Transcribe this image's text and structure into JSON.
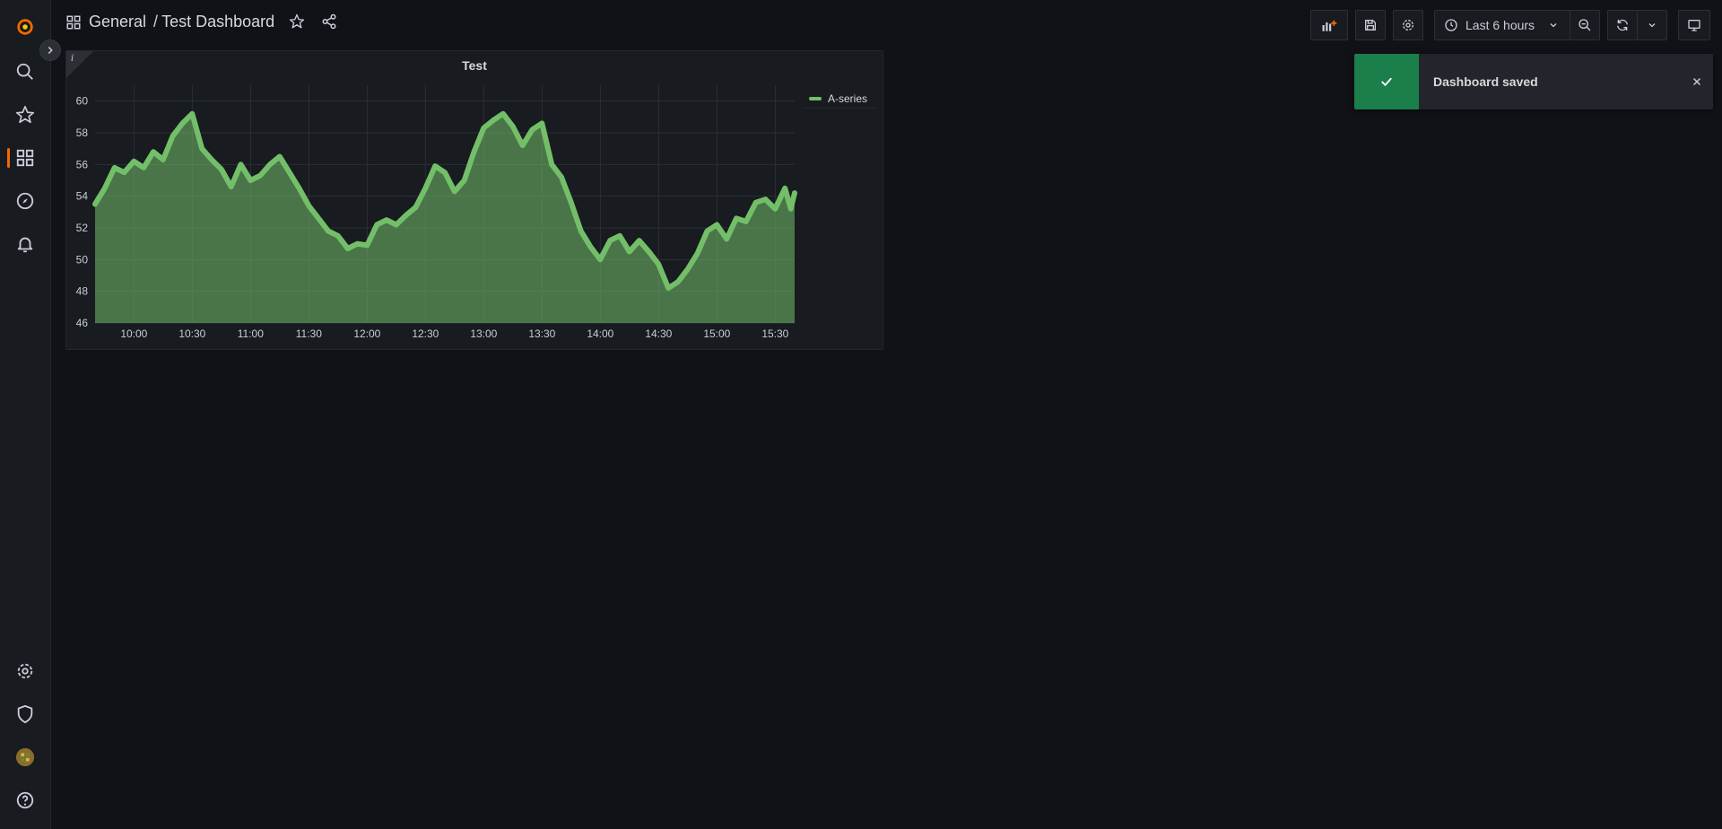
{
  "breadcrumb": {
    "folder": "General",
    "separator": "/",
    "dashboard": "Test Dashboard"
  },
  "toolbar": {
    "time_range": "Last 6 hours"
  },
  "panel": {
    "title": "Test",
    "info_marker": "i"
  },
  "toast": {
    "message": "Dashboard saved"
  },
  "icons": {
    "sidebar": [
      "grafana-logo-icon",
      "search-icon",
      "star-icon",
      "dashboards-icon",
      "explore-icon",
      "alerting-icon",
      "gear-icon",
      "shield-icon",
      "avatar",
      "help-icon"
    ],
    "toolbar": [
      "add-panel-icon",
      "save-icon",
      "gear-icon",
      "clock-icon",
      "chevron-down-icon",
      "zoom-out-icon",
      "refresh-icon",
      "chevron-down-icon",
      "tv-icon"
    ]
  },
  "colors": {
    "accent": "#f46800",
    "series": "#73bf69",
    "success": "#1a7f4b"
  },
  "chart_data": {
    "type": "area",
    "title": "Test",
    "series": [
      {
        "name": "A-series",
        "color": "#73bf69",
        "points": [
          [
            "09:40",
            53.5
          ],
          [
            "09:45",
            54.5
          ],
          [
            "09:50",
            55.8
          ],
          [
            "09:55",
            55.5
          ],
          [
            "10:00",
            56.2
          ],
          [
            "10:05",
            55.8
          ],
          [
            "10:10",
            56.8
          ],
          [
            "10:15",
            56.3
          ],
          [
            "10:20",
            57.8
          ],
          [
            "10:25",
            58.6
          ],
          [
            "10:30",
            59.2
          ],
          [
            "10:35",
            57.0
          ],
          [
            "10:40",
            56.3
          ],
          [
            "10:45",
            55.7
          ],
          [
            "10:50",
            54.6
          ],
          [
            "10:55",
            56.0
          ],
          [
            "11:00",
            55.0
          ],
          [
            "11:05",
            55.3
          ],
          [
            "11:10",
            56.0
          ],
          [
            "11:15",
            56.5
          ],
          [
            "11:20",
            55.5
          ],
          [
            "11:25",
            54.5
          ],
          [
            "11:30",
            53.4
          ],
          [
            "11:35",
            52.6
          ],
          [
            "11:40",
            51.8
          ],
          [
            "11:45",
            51.5
          ],
          [
            "11:50",
            50.7
          ],
          [
            "11:55",
            51.0
          ],
          [
            "12:00",
            50.9
          ],
          [
            "12:05",
            52.2
          ],
          [
            "12:10",
            52.5
          ],
          [
            "12:15",
            52.2
          ],
          [
            "12:20",
            52.8
          ],
          [
            "12:25",
            53.3
          ],
          [
            "12:30",
            54.5
          ],
          [
            "12:35",
            55.9
          ],
          [
            "12:40",
            55.5
          ],
          [
            "12:45",
            54.3
          ],
          [
            "12:50",
            55.0
          ],
          [
            "12:55",
            56.8
          ],
          [
            "13:00",
            58.3
          ],
          [
            "13:05",
            58.8
          ],
          [
            "13:10",
            59.2
          ],
          [
            "13:15",
            58.4
          ],
          [
            "13:20",
            57.2
          ],
          [
            "13:25",
            58.2
          ],
          [
            "13:30",
            58.6
          ],
          [
            "13:35",
            56.0
          ],
          [
            "13:40",
            55.2
          ],
          [
            "13:45",
            53.6
          ],
          [
            "13:50",
            51.8
          ],
          [
            "13:55",
            50.8
          ],
          [
            "14:00",
            50.0
          ],
          [
            "14:05",
            51.2
          ],
          [
            "14:10",
            51.5
          ],
          [
            "14:15",
            50.5
          ],
          [
            "14:20",
            51.2
          ],
          [
            "14:25",
            50.5
          ],
          [
            "14:30",
            49.7
          ],
          [
            "14:35",
            48.2
          ],
          [
            "14:40",
            48.6
          ],
          [
            "14:45",
            49.4
          ],
          [
            "14:50",
            50.4
          ],
          [
            "14:55",
            51.8
          ],
          [
            "15:00",
            52.2
          ],
          [
            "15:05",
            51.3
          ],
          [
            "15:10",
            52.6
          ],
          [
            "15:15",
            52.4
          ],
          [
            "15:20",
            53.6
          ],
          [
            "15:25",
            53.8
          ],
          [
            "15:30",
            53.2
          ],
          [
            "15:35",
            54.5
          ],
          [
            "15:38",
            53.2
          ],
          [
            "15:40",
            54.2
          ]
        ]
      }
    ],
    "x_ticks": [
      "10:00",
      "10:30",
      "11:00",
      "11:30",
      "12:00",
      "12:30",
      "13:00",
      "13:30",
      "14:00",
      "14:30",
      "15:00",
      "15:30"
    ],
    "y_ticks": [
      46,
      48,
      50,
      52,
      54,
      56,
      58,
      60
    ],
    "xlim": [
      "09:40",
      "15:40"
    ],
    "ylim": [
      46,
      61
    ],
    "grid": true,
    "legend": "right"
  }
}
